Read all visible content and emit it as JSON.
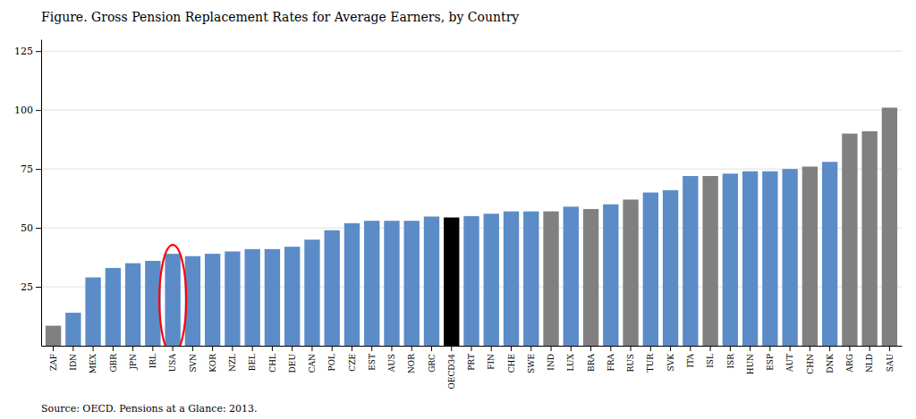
{
  "chart_data": {
    "type": "bar",
    "title": "Figure. Gross Pension Replacement Rates for Average Earners, by Country",
    "categories": [
      "ZAF",
      "IDN",
      "MEX",
      "GBR",
      "JPN",
      "IRL",
      "USA",
      "SVN",
      "KOR",
      "NZL",
      "BEL",
      "CHL",
      "DEU",
      "CAN",
      "POL",
      "CZE",
      "EST",
      "AUS",
      "NOR",
      "GRC",
      "OECD34",
      "PRT",
      "FIN",
      "CHE",
      "SWE",
      "IND",
      "LUX",
      "BRA",
      "FRA",
      "RUS",
      "TUR",
      "SVK",
      "ITA",
      "ISL",
      "ISR",
      "HUN",
      "ESP",
      "AUT",
      "CHN",
      "DNK",
      "ARG",
      "NLD",
      "SAU"
    ],
    "values": [
      8.5,
      14,
      29,
      33,
      35,
      36,
      39,
      38,
      39,
      40,
      41,
      41,
      42,
      45,
      49,
      52,
      53,
      53,
      53,
      54.8,
      54.4,
      55,
      56,
      57,
      57,
      57,
      59,
      58,
      60,
      62,
      65,
      66,
      72,
      72,
      73,
      74,
      74,
      75,
      76,
      78,
      90,
      91,
      101
    ],
    "colors": [
      "#808080",
      "#5b8cc8",
      "#5b8cc8",
      "#5b8cc8",
      "#5b8cc8",
      "#5b8cc8",
      "#5b8cc8",
      "#5b8cc8",
      "#5b8cc8",
      "#5b8cc8",
      "#5b8cc8",
      "#5b8cc8",
      "#5b8cc8",
      "#5b8cc8",
      "#5b8cc8",
      "#5b8cc8",
      "#5b8cc8",
      "#5b8cc8",
      "#5b8cc8",
      "#5b8cc8",
      "#000000",
      "#5b8cc8",
      "#5b8cc8",
      "#5b8cc8",
      "#5b8cc8",
      "#808080",
      "#5b8cc8",
      "#808080",
      "#5b8cc8",
      "#808080",
      "#5b8cc8",
      "#5b8cc8",
      "#5b8cc8",
      "#808080",
      "#5b8cc8",
      "#5b8cc8",
      "#5b8cc8",
      "#5b8cc8",
      "#808080",
      "#5b8cc8",
      "#808080",
      "#808080",
      "#808080"
    ],
    "ylim": [
      0,
      130
    ],
    "yticks": [
      25,
      50,
      75,
      100,
      125
    ],
    "grid": true,
    "annotations": [
      {
        "text": "Source: OECD. Pensions at a Glance: 2013."
      },
      {
        "category": "USA",
        "color": "#ff0000"
      }
    ]
  }
}
